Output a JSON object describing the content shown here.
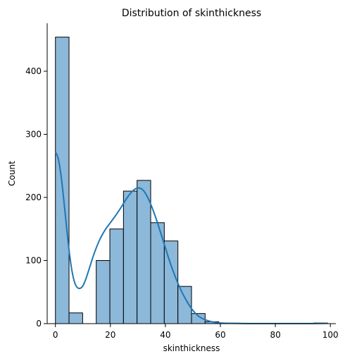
{
  "chart_data": {
    "type": "bar",
    "title": "Distribution of skinthickness",
    "xlabel": "skinthickness",
    "ylabel": "Count",
    "xlim": [
      -3,
      102
    ],
    "ylim": [
      0,
      480
    ],
    "xticks": [
      0,
      20,
      40,
      60,
      80,
      100
    ],
    "yticks": [
      0,
      100,
      200,
      300,
      400
    ],
    "grid": false,
    "bin_edges": [
      0,
      4.95,
      9.9,
      14.85,
      19.8,
      24.75,
      29.7,
      34.65,
      39.6,
      44.55,
      49.5,
      54.45,
      59.4,
      64.35,
      69.3,
      74.25,
      79.2,
      84.15,
      89.1,
      94.05,
      99
    ],
    "values": [
      454,
      17,
      0,
      100,
      150,
      210,
      227,
      160,
      131,
      59,
      16,
      3,
      0,
      0,
      0,
      0,
      0,
      0,
      0,
      1
    ],
    "kde": {
      "x": [
        0,
        1,
        2,
        3,
        4,
        5,
        6,
        7,
        8,
        9,
        10,
        11,
        12,
        14,
        16,
        18,
        20,
        22,
        24,
        26,
        28,
        30,
        32,
        34,
        36,
        38,
        40,
        42,
        44,
        46,
        48,
        50,
        52,
        54,
        56,
        58,
        60,
        64,
        70,
        80,
        90,
        99
      ],
      "y": [
        272,
        262,
        236,
        198,
        155,
        115,
        84,
        65,
        57,
        56,
        60,
        70,
        83,
        110,
        132,
        148,
        160,
        172,
        185,
        199,
        210,
        215,
        211,
        196,
        174,
        148,
        120,
        93,
        70,
        50,
        34,
        21,
        12,
        7,
        4,
        2,
        1,
        0.5,
        0.2,
        0.1,
        0.1,
        0.5
      ]
    },
    "colors": {
      "bar_fill": "#8cb8da",
      "bar_edge": "#000000",
      "kde_line": "#1f77b4"
    }
  }
}
